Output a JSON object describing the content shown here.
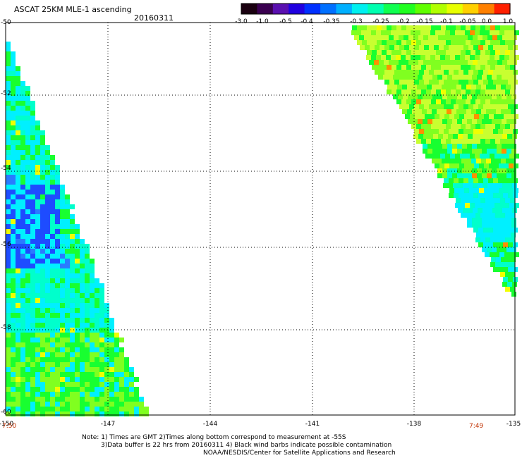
{
  "header": {
    "title": "ASCAT 25KM MLE-1 ascending",
    "date": "20160311"
  },
  "colorbar": {
    "labels": [
      "-3.0",
      "-1.0",
      "-0.5",
      "-0.4",
      "-0.35",
      "-0.3",
      "-0.25",
      "-0.2",
      "-0.15",
      "-0.1",
      "-0.05",
      "0.0",
      "1.0"
    ],
    "colors": [
      "#1a0010",
      "#3a0050",
      "#5a10b0",
      "#2000e0",
      "#0030ff",
      "#0070ff",
      "#00b0ff",
      "#00f0f0",
      "#00ffb0",
      "#10ff50",
      "#20ff20",
      "#60ff00",
      "#b0ff00",
      "#e8ff00",
      "#ffd000",
      "#ff8000",
      "#ff2000"
    ]
  },
  "axes": {
    "lat_labels": [
      "-50",
      "-52",
      "-54",
      "-56",
      "-58",
      "-60"
    ],
    "lon_labels": [
      "-150",
      "-147",
      "-144",
      "-141",
      "-138",
      "-135"
    ],
    "lat_range": [
      -60,
      -50
    ],
    "lon_range": [
      -150,
      -135
    ]
  },
  "times": {
    "left": "7:50",
    "right": "7:49"
  },
  "notes": [
    "Note: 1) Times are GMT 2)Times along bottom correspond to measurement at -55S",
    "3)Data buffer is 22 hrs from 20160311 4) Black wind barbs indicate possible contamination",
    "NOAA/NESDIS/Center for Satellite Applications and Research"
  ],
  "palette": {
    "deep_blue": "#1e4cff",
    "blue": "#2a7bff",
    "cyan": "#00f0ff",
    "aqua": "#00ffcc",
    "green": "#18ff30",
    "lime": "#80ff20",
    "yellow_green": "#c8ff30",
    "yellow": "#f0ff00",
    "orange": "#ff9000"
  }
}
